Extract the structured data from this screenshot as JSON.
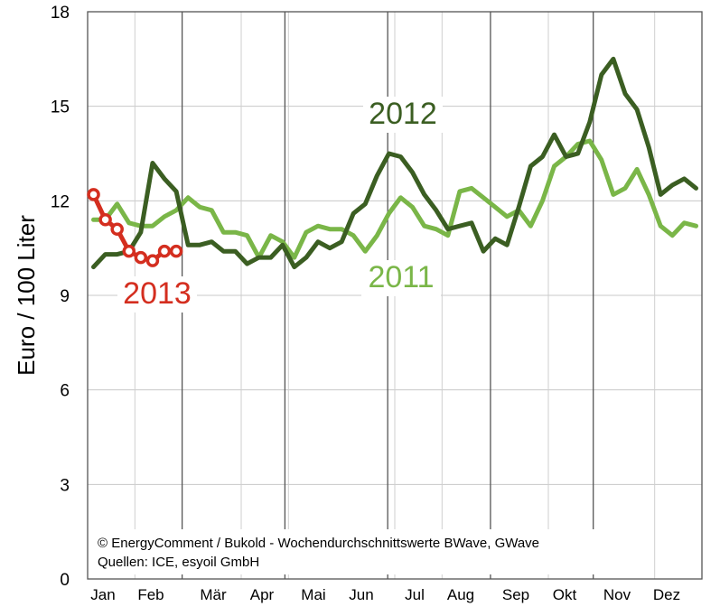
{
  "chart_data": {
    "type": "line",
    "title": "",
    "xlabel": "",
    "ylabel": "Euro / 100 Liter",
    "ylim": [
      0,
      18
    ],
    "yticks": [
      0,
      3,
      6,
      9,
      12,
      15,
      18
    ],
    "grid": true,
    "categories": [
      "Jan",
      "Feb",
      "Mär",
      "Apr",
      "Mai",
      "Jun",
      "Jul",
      "Aug",
      "Sep",
      "Okt",
      "Nov",
      "Dez"
    ],
    "x_unit": "week of year",
    "series": [
      {
        "name": "2011",
        "color": "#7ab648",
        "marker": "none",
        "x": [
          1,
          2,
          3,
          4,
          5,
          6,
          7,
          8,
          9,
          10,
          11,
          12,
          13,
          14,
          15,
          16,
          17,
          18,
          19,
          20,
          21,
          22,
          23,
          24,
          25,
          26,
          27,
          28,
          29,
          30,
          31,
          32,
          33,
          34,
          35,
          36,
          37,
          38,
          39,
          40,
          41,
          42,
          43,
          44,
          45,
          46,
          47,
          48,
          49,
          50,
          51,
          52
        ],
        "values": [
          11.4,
          11.4,
          11.9,
          11.3,
          11.2,
          11.2,
          11.5,
          11.7,
          12.1,
          11.8,
          11.7,
          11.0,
          11.0,
          10.9,
          10.2,
          10.9,
          10.7,
          10.2,
          11.0,
          11.2,
          11.1,
          11.1,
          10.9,
          10.4,
          10.9,
          11.6,
          12.1,
          11.8,
          11.2,
          11.1,
          10.9,
          12.3,
          12.4,
          12.1,
          11.8,
          11.5,
          11.7,
          11.2,
          12.0,
          13.1,
          13.4,
          13.8,
          13.9,
          13.3,
          12.2,
          12.4,
          13.0,
          12.2,
          11.2,
          10.9,
          11.3,
          11.2
        ]
      },
      {
        "name": "2012",
        "color": "#3b5e22",
        "marker": "none",
        "x": [
          1,
          2,
          3,
          4,
          5,
          6,
          7,
          8,
          9,
          10,
          11,
          12,
          13,
          14,
          15,
          16,
          17,
          18,
          19,
          20,
          21,
          22,
          23,
          24,
          25,
          26,
          27,
          28,
          29,
          30,
          31,
          32,
          33,
          34,
          35,
          36,
          37,
          38,
          39,
          40,
          41,
          42,
          43,
          44,
          45,
          46,
          47,
          48,
          49,
          50,
          51,
          52
        ],
        "values": [
          9.9,
          10.3,
          10.3,
          10.4,
          11.0,
          13.2,
          12.7,
          12.3,
          10.6,
          10.6,
          10.7,
          10.4,
          10.4,
          10.0,
          10.2,
          10.2,
          10.6,
          9.9,
          10.2,
          10.7,
          10.5,
          10.7,
          11.6,
          11.9,
          12.8,
          13.5,
          13.4,
          12.9,
          12.2,
          11.7,
          11.1,
          11.2,
          11.3,
          10.4,
          10.8,
          10.6,
          11.8,
          13.1,
          13.4,
          14.1,
          13.4,
          13.5,
          14.5,
          16.0,
          16.5,
          15.4,
          14.9,
          13.7,
          12.2,
          12.5,
          12.7,
          12.4
        ]
      },
      {
        "name": "2013",
        "color": "#d42e1f",
        "marker": "circle",
        "x": [
          1,
          2,
          3,
          4,
          5,
          6,
          7,
          8
        ],
        "values": [
          12.2,
          11.4,
          11.1,
          10.4,
          10.2,
          10.1,
          10.4,
          10.4
        ]
      }
    ],
    "annotations": [
      "© EnergyComment / Bukold - Wochendurchschnittswerte BWave, GWave",
      "Quellen: ICE, esyoil GmbH"
    ]
  }
}
